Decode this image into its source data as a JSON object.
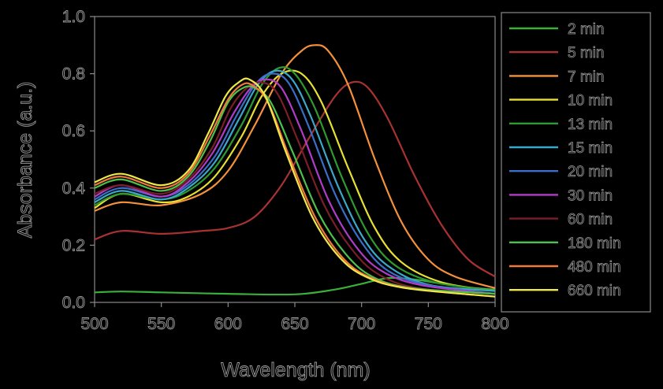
{
  "chart_data": {
    "type": "line",
    "title": "",
    "xlabel": "Wavelength (nm)",
    "ylabel": "Absorbance (a.u.)",
    "xlim": [
      500,
      800
    ],
    "ylim": [
      0.0,
      1.0
    ],
    "xticks": [
      "500",
      "550",
      "600",
      "650",
      "700",
      "750",
      "800"
    ],
    "yticks": [
      "0.0",
      "0.2",
      "0.4",
      "0.6",
      "0.8",
      "1.0"
    ],
    "grid": false,
    "legend_position": "right",
    "series": [
      {
        "name": "2 min",
        "color": "#3cae3c",
        "x": [
          500,
          520,
          550,
          600,
          650,
          680,
          700,
          720,
          740,
          760,
          780,
          800
        ],
        "y": [
          0.035,
          0.038,
          0.035,
          0.03,
          0.028,
          0.045,
          0.065,
          0.085,
          0.08,
          0.065,
          0.052,
          0.045
        ]
      },
      {
        "name": "5 min",
        "color": "#a83232",
        "x": [
          500,
          520,
          550,
          580,
          600,
          620,
          640,
          660,
          680,
          693,
          705,
          720,
          740,
          760,
          780,
          800
        ],
        "y": [
          0.22,
          0.25,
          0.24,
          0.25,
          0.26,
          0.3,
          0.41,
          0.57,
          0.72,
          0.77,
          0.75,
          0.64,
          0.44,
          0.27,
          0.15,
          0.09
        ]
      },
      {
        "name": "7 min",
        "color": "#f5913a",
        "x": [
          500,
          520,
          550,
          580,
          600,
          620,
          640,
          655,
          665,
          675,
          690,
          710,
          730,
          750,
          770,
          800
        ],
        "y": [
          0.32,
          0.35,
          0.34,
          0.38,
          0.46,
          0.62,
          0.8,
          0.88,
          0.9,
          0.88,
          0.76,
          0.5,
          0.28,
          0.15,
          0.09,
          0.05
        ]
      },
      {
        "name": "10 min",
        "color": "#e8e032",
        "x": [
          500,
          520,
          550,
          570,
          590,
          610,
          625,
          640,
          655,
          670,
          690,
          710,
          730,
          760,
          800
        ],
        "y": [
          0.33,
          0.38,
          0.35,
          0.37,
          0.44,
          0.58,
          0.72,
          0.8,
          0.8,
          0.7,
          0.47,
          0.26,
          0.14,
          0.07,
          0.04
        ]
      },
      {
        "name": "13 min",
        "color": "#2f9a2f",
        "x": [
          500,
          520,
          550,
          570,
          590,
          610,
          625,
          638,
          650,
          665,
          685,
          705,
          725,
          755,
          800
        ],
        "y": [
          0.34,
          0.38,
          0.36,
          0.39,
          0.47,
          0.62,
          0.76,
          0.82,
          0.8,
          0.68,
          0.44,
          0.24,
          0.13,
          0.07,
          0.04
        ]
      },
      {
        "name": "15 min",
        "color": "#3aa8c8",
        "x": [
          500,
          520,
          550,
          570,
          590,
          608,
          622,
          635,
          648,
          662,
          682,
          702,
          722,
          752,
          800
        ],
        "y": [
          0.35,
          0.39,
          0.36,
          0.4,
          0.49,
          0.64,
          0.76,
          0.81,
          0.78,
          0.65,
          0.41,
          0.22,
          0.12,
          0.06,
          0.04
        ]
      },
      {
        "name": "20 min",
        "color": "#3a6ec8",
        "x": [
          500,
          520,
          550,
          570,
          590,
          606,
          620,
          632,
          645,
          660,
          680,
          700,
          720,
          750,
          800
        ],
        "y": [
          0.36,
          0.4,
          0.37,
          0.41,
          0.51,
          0.65,
          0.76,
          0.8,
          0.77,
          0.62,
          0.38,
          0.21,
          0.11,
          0.06,
          0.03
        ]
      },
      {
        "name": "30 min",
        "color": "#b03cc8",
        "x": [
          500,
          520,
          550,
          570,
          588,
          604,
          617,
          628,
          640,
          655,
          675,
          695,
          715,
          745,
          800
        ],
        "y": [
          0.37,
          0.41,
          0.37,
          0.42,
          0.52,
          0.66,
          0.75,
          0.78,
          0.75,
          0.6,
          0.36,
          0.2,
          0.11,
          0.06,
          0.03
        ]
      },
      {
        "name": "60 min",
        "color": "#7a1e2a",
        "x": [
          500,
          520,
          550,
          570,
          588,
          602,
          614,
          625,
          637,
          652,
          672,
          692,
          712,
          742,
          800
        ],
        "y": [
          0.38,
          0.41,
          0.38,
          0.43,
          0.54,
          0.68,
          0.75,
          0.77,
          0.73,
          0.57,
          0.34,
          0.19,
          0.1,
          0.05,
          0.03
        ]
      },
      {
        "name": "180 min",
        "color": "#4cc24c",
        "x": [
          500,
          520,
          550,
          570,
          586,
          600,
          611,
          620,
          632,
          648,
          668,
          688,
          708,
          738,
          800
        ],
        "y": [
          0.4,
          0.43,
          0.39,
          0.44,
          0.56,
          0.7,
          0.75,
          0.75,
          0.7,
          0.53,
          0.31,
          0.17,
          0.09,
          0.05,
          0.03
        ]
      },
      {
        "name": "480 min",
        "color": "#f07a3c",
        "x": [
          500,
          520,
          550,
          570,
          586,
          600,
          610,
          618,
          630,
          645,
          665,
          685,
          705,
          735,
          800
        ],
        "y": [
          0.41,
          0.44,
          0.4,
          0.45,
          0.58,
          0.71,
          0.76,
          0.76,
          0.7,
          0.52,
          0.3,
          0.16,
          0.09,
          0.05,
          0.02
        ]
      },
      {
        "name": "660 min",
        "color": "#f0e84a",
        "x": [
          500,
          520,
          550,
          570,
          585,
          598,
          608,
          616,
          628,
          643,
          663,
          683,
          703,
          733,
          800
        ],
        "y": [
          0.42,
          0.45,
          0.41,
          0.46,
          0.59,
          0.72,
          0.77,
          0.78,
          0.72,
          0.53,
          0.3,
          0.16,
          0.09,
          0.05,
          0.02
        ]
      }
    ]
  }
}
